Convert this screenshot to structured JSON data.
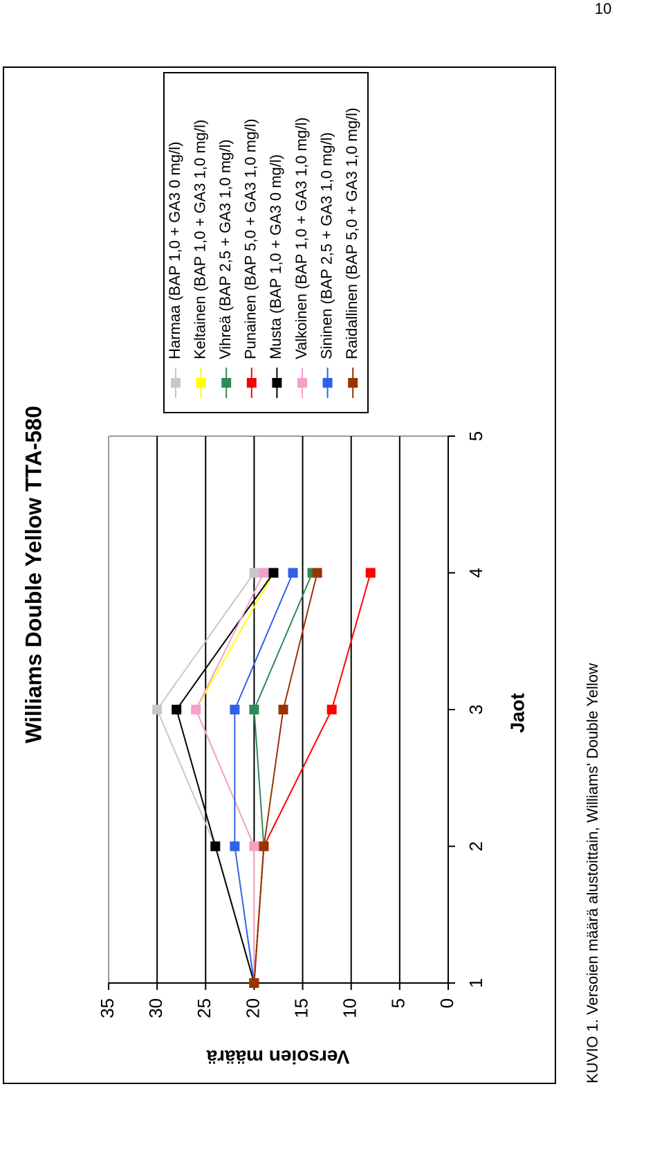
{
  "page_number": "10",
  "caption": "KUVIO 1. Versoien määrä alustoittain, Williams' Double Yellow",
  "chart_data": {
    "type": "line",
    "title": "Williams Double Yellow TTA-580",
    "x_label": "Jaot",
    "y_label": "Versoien määrä",
    "x": [
      1,
      2,
      3,
      4
    ],
    "xlim": [
      1,
      5
    ],
    "xticks": [
      1,
      2,
      3,
      4,
      5
    ],
    "ylim": [
      0,
      35
    ],
    "yticks": [
      0,
      5,
      10,
      15,
      20,
      25,
      30,
      35
    ],
    "grid": true,
    "legend": "right",
    "series": [
      {
        "name": "Harmaa (BAP 1,0 + GA3 0 mg/l)",
        "color": "#c8c8c8",
        "values": [
          20,
          24,
          30,
          20
        ]
      },
      {
        "name": "Keltainen (BAP 1,0 + GA3 1,0 mg/l)",
        "color": "#ffff00",
        "values": [
          20,
          20,
          26,
          18
        ]
      },
      {
        "name": "Vihreä (BAP 2,5 + GA3 1,0 mg/l)",
        "color": "#2e8b57",
        "values": [
          20,
          19,
          20,
          14
        ]
      },
      {
        "name": "Punainen (BAP 5,0 + GA3 1,0 mg/l)",
        "color": "#ff0000",
        "values": [
          20,
          19,
          12,
          8
        ]
      },
      {
        "name": "Musta (BAP 1,0 + GA3 0 mg/l)",
        "color": "#000000",
        "values": [
          20,
          24,
          28,
          18
        ]
      },
      {
        "name": "Valkoinen (BAP 1,0 + GA3 1,0 mg/l)",
        "color": "#f4a0c8",
        "values": [
          20,
          20,
          26,
          19
        ]
      },
      {
        "name": "Sininen (BAP 2,5 + GA3 1,0 mg/l)",
        "color": "#3060e8",
        "values": [
          20,
          22,
          22,
          16
        ]
      },
      {
        "name": "Raidallinen (BAP 5,0 + GA3 1,0 mg/l)",
        "color": "#993300",
        "values": [
          20,
          19,
          17,
          13.5
        ]
      }
    ]
  }
}
